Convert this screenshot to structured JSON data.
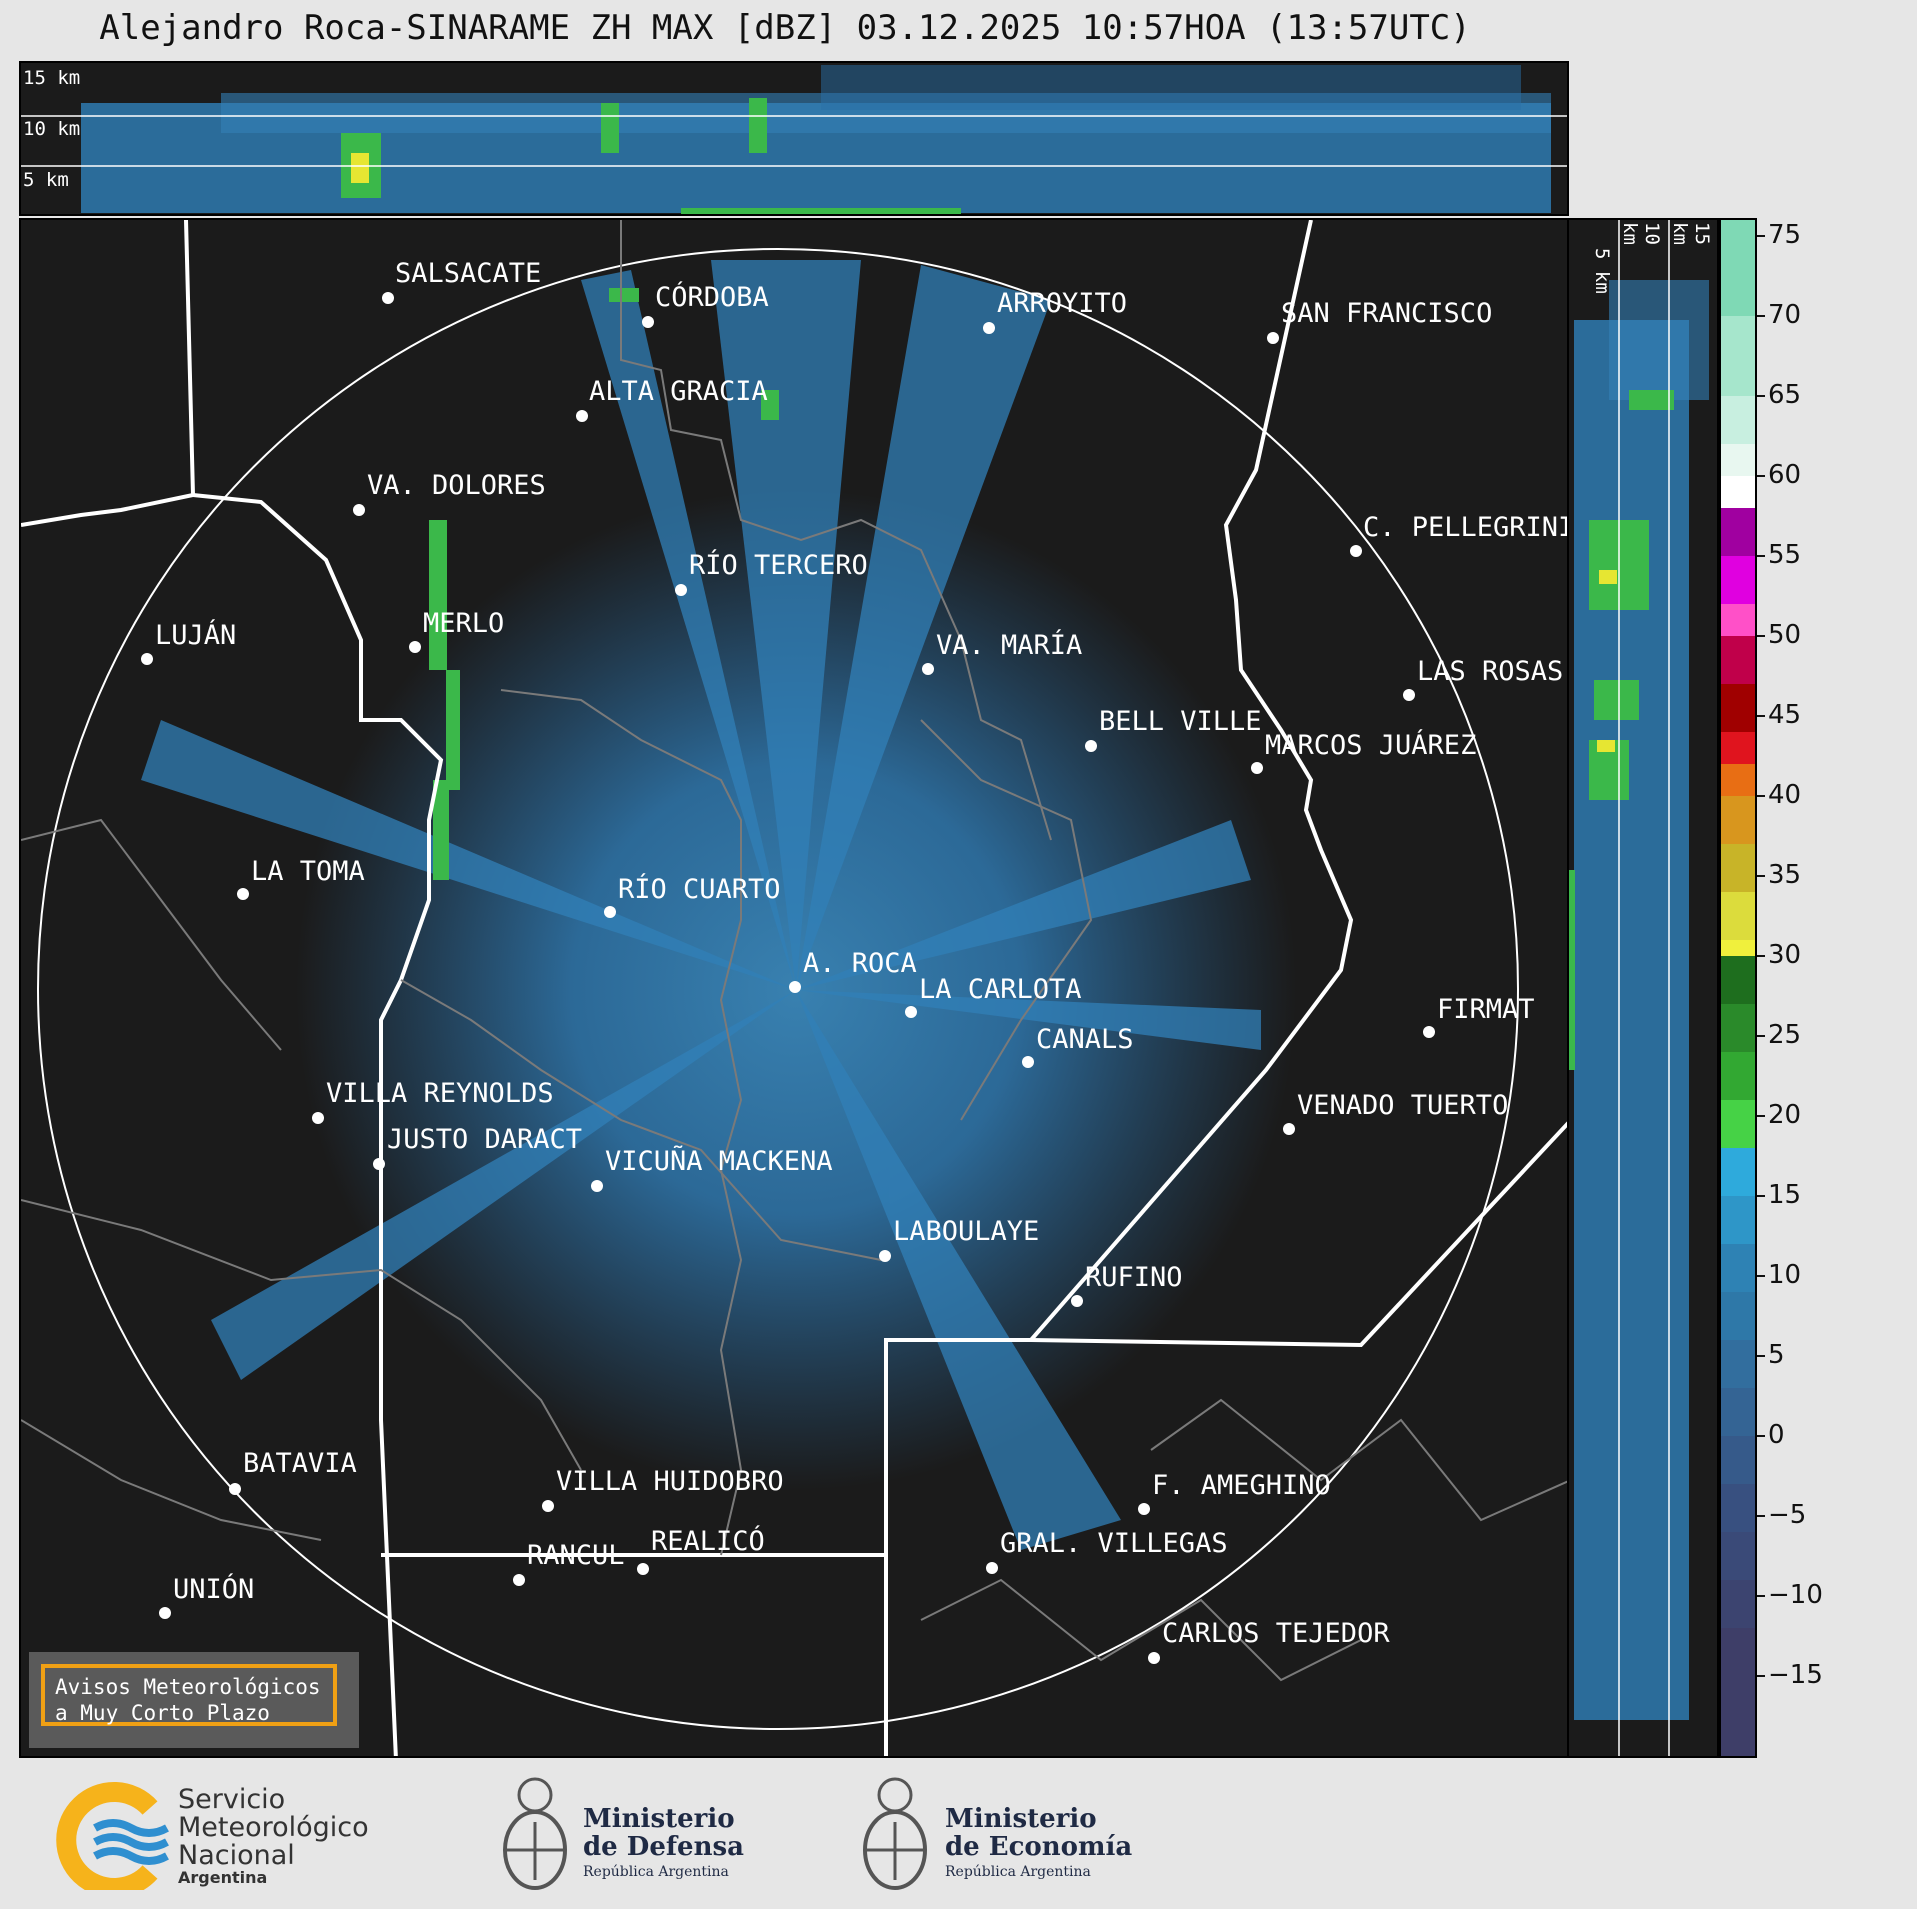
{
  "title": "Alejandro Roca-SINARAME ZH MAX [dBZ] 03.12.2025 10:57HOA (13:57UTC)",
  "top_strip_labels": [
    "15 km",
    "10 km",
    "5 km"
  ],
  "side_strip_labels": [
    "5 km",
    "10 km",
    "15 km"
  ],
  "cities": [
    {
      "name": "SALSACATE"
    },
    {
      "name": "CÓRDOBA"
    },
    {
      "name": "ARROYITO"
    },
    {
      "name": "SAN FRANCISCO"
    },
    {
      "name": "ALTA GRACIA"
    },
    {
      "name": "VA. DOLORES"
    },
    {
      "name": "C. PELLEGRINI"
    },
    {
      "name": "RÍO TERCERO"
    },
    {
      "name": "LUJÁN"
    },
    {
      "name": "MERLO"
    },
    {
      "name": "VA. MARÍA"
    },
    {
      "name": "LAS ROSAS"
    },
    {
      "name": "BELL VILLE"
    },
    {
      "name": "MARCOS JUÁREZ"
    },
    {
      "name": "LA TOMA"
    },
    {
      "name": "RÍO CUARTO"
    },
    {
      "name": "A. ROCA"
    },
    {
      "name": "LA CARLOTA"
    },
    {
      "name": "FIRMAT"
    },
    {
      "name": "CANALS"
    },
    {
      "name": "VILLA REYNOLDS"
    },
    {
      "name": "VENADO TUERTO"
    },
    {
      "name": "JUSTO DARACT"
    },
    {
      "name": "VICUÑA MACKENA"
    },
    {
      "name": "LABOULAYE"
    },
    {
      "name": "RUFINO"
    },
    {
      "name": "BATAVIA"
    },
    {
      "name": "VILLA HUIDOBRO"
    },
    {
      "name": "F. AMEGHINO"
    },
    {
      "name": "RANCUL"
    },
    {
      "name": "REALICÓ"
    },
    {
      "name": "GRAL. VILLEGAS"
    },
    {
      "name": "UNIÓN"
    },
    {
      "name": "CARLOS TEJEDOR"
    }
  ],
  "colorbar": {
    "ticks": [
      "75",
      "70",
      "65",
      "60",
      "55",
      "50",
      "45",
      "40",
      "35",
      "30",
      "25",
      "20",
      "15",
      "10",
      "5",
      "0",
      "−5",
      "−10",
      "−15"
    ],
    "min": -20,
    "max": 76
  },
  "warning_box": {
    "line1": "Avisos Meteorológicos",
    "line2": "a Muy Corto Plazo"
  },
  "logos": {
    "smn": {
      "line1": "Servicio",
      "line2": "Meteorológico",
      "line3": "Nacional",
      "line4": "Argentina"
    },
    "defensa": {
      "line1": "Ministerio",
      "line2": "de Defensa",
      "line3": "República Argentina"
    },
    "economia": {
      "line1": "Ministerio",
      "line2": "de Economía",
      "line3": "República Argentina"
    }
  },
  "colors": {
    "accent_orange": "#f0a014",
    "smn_yellow": "#f6b31b",
    "smn_blue": "#2f8fd0",
    "background_dark": "#1b1b1b"
  }
}
